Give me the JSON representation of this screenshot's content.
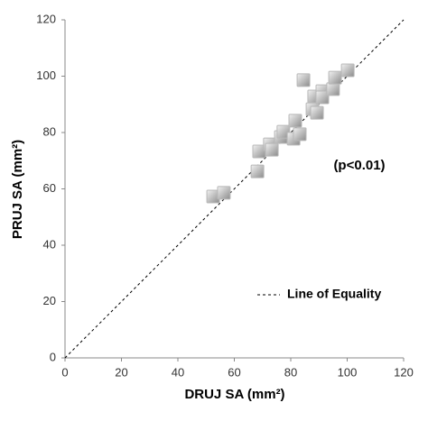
{
  "chart_data": {
    "type": "scatter",
    "xlabel": "DRUJ SA (mm²)",
    "ylabel": "PRUJ SA (mm²)",
    "annotation": "(p<0.01)",
    "xlim": [
      0,
      120
    ],
    "ylim": [
      0,
      120
    ],
    "xticks": [
      0,
      20,
      40,
      60,
      80,
      100,
      120
    ],
    "yticks": [
      0,
      20,
      40,
      60,
      80,
      100,
      120
    ],
    "grid": false,
    "series": [
      {
        "color": "#b8b8b8",
        "x": [
          52.5,
          56.3,
          68.2,
          68.8,
          72.6,
          73.3,
          76.5,
          77.4,
          81,
          81.6,
          83.2,
          84.5,
          87.7,
          88.3,
          89.3,
          91.2,
          91.2,
          95,
          95.7,
          100.2
        ],
        "values": [
          57.3,
          58.6,
          66.2,
          73.3,
          75.8,
          73.9,
          78.4,
          80.3,
          77.8,
          84.2,
          79.4,
          98.6,
          88.3,
          92.8,
          87,
          94.7,
          92.5,
          95.4,
          99.5,
          102.1
        ]
      }
    ],
    "reference_line": {
      "name": "Line of Equality",
      "x": [
        0,
        120
      ],
      "values": [
        0,
        120
      ],
      "color": "#000000"
    }
  }
}
